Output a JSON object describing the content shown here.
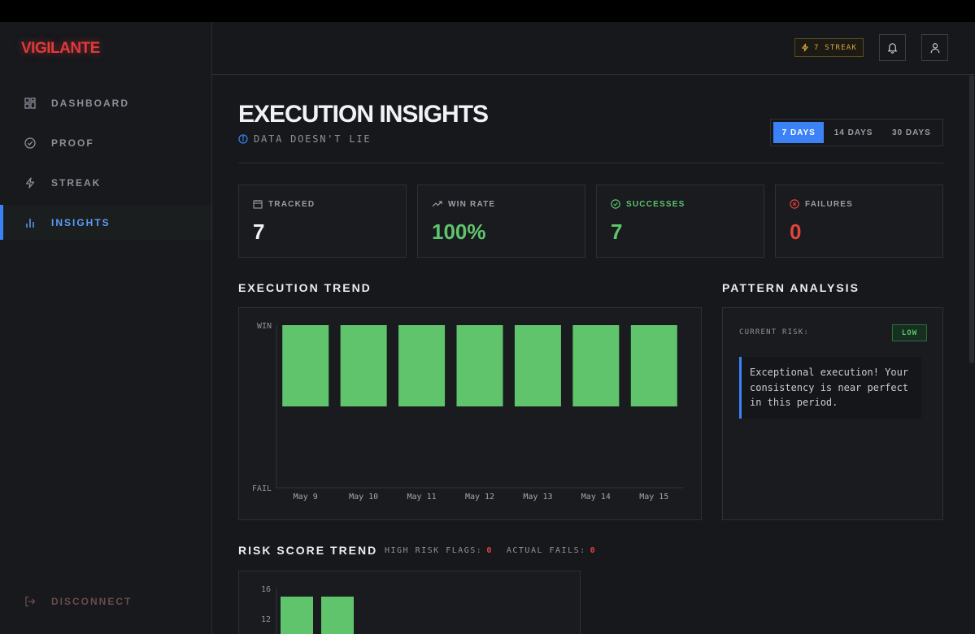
{
  "app": {
    "logo": "VIGILANTE"
  },
  "sidebar": {
    "items": [
      {
        "label": "DASHBOARD",
        "icon": "grid-icon"
      },
      {
        "label": "PROOF",
        "icon": "check-circle-icon"
      },
      {
        "label": "STREAK",
        "icon": "lightning-icon"
      },
      {
        "label": "INSIGHTS",
        "icon": "bar-chart-icon"
      }
    ],
    "active": "INSIGHTS",
    "disconnect": "DISCONNECT"
  },
  "header": {
    "streak_badge": "7 STREAK",
    "bell": "bell-icon",
    "user": "user-icon"
  },
  "page": {
    "title": "EXECUTION INSIGHTS",
    "subtitle": "DATA DOESN'T LIE"
  },
  "range": {
    "options": [
      "7 DAYS",
      "14 DAYS",
      "30 DAYS"
    ],
    "selected": "7 DAYS"
  },
  "stats": [
    {
      "label": "TRACKED",
      "value": "7",
      "icon": "calendar-icon",
      "color": "#f2f2f4"
    },
    {
      "label": "WIN RATE",
      "value": "100%",
      "icon": "trending-up-icon",
      "color": "#5fc46c"
    },
    {
      "label": "SUCCESSES",
      "value": "7",
      "icon": "check-circle-icon",
      "color": "#5fc46c"
    },
    {
      "label": "FAILURES",
      "value": "0",
      "icon": "x-circle-icon",
      "color": "#e0443c"
    }
  ],
  "execution_trend": {
    "title": "EXECUTION TREND"
  },
  "pattern": {
    "title": "PATTERN ANALYSIS",
    "risk_label": "CURRENT RISK:",
    "risk_value": "LOW",
    "message": "Exceptional execution! Your consistency is near perfect in this period."
  },
  "risk_trend": {
    "title": "RISK SCORE TREND",
    "high_risk_label": "HIGH RISK FLAGS:",
    "high_risk_value": "0",
    "actual_fails_label": "ACTUAL FAILS:",
    "actual_fails_value": "0"
  },
  "chart_data": [
    {
      "type": "bar",
      "categories": [
        "May 9",
        "May 10",
        "May 11",
        "May 12",
        "May 13",
        "May 14",
        "May 15"
      ],
      "values": [
        1,
        1,
        1,
        1,
        1,
        1,
        1
      ],
      "y_tick_labels": [
        "FAIL",
        "WIN"
      ],
      "ylim": [
        0,
        2
      ],
      "color": "#5fc46c",
      "grid": false
    },
    {
      "type": "bar",
      "categories": [
        "",
        ""
      ],
      "values": [
        16,
        16
      ],
      "y_ticks": [
        16,
        12
      ],
      "color": "#5fc46c",
      "grid": false
    }
  ]
}
